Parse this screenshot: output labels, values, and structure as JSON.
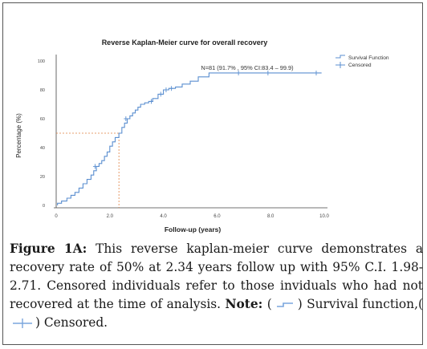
{
  "chart_data": {
    "type": "line",
    "title": "Reverse Kaplan-Meier curve for overall recovery",
    "xlabel": "Follow-up (years)",
    "ylabel": "Percentage (%)",
    "xlim": [
      0,
      10
    ],
    "ylim": [
      0,
      100
    ],
    "x_ticks": [
      "0",
      "2.0",
      "4.0",
      "6.0",
      "8.0",
      "10.0"
    ],
    "y_ticks": [
      "0",
      "20",
      "40",
      "60",
      "80",
      "100"
    ],
    "annotation": "N=81 (91.7% , 95% CI:83.4 – 99.9)",
    "grid": false,
    "legend_position": "top-right",
    "series": [
      {
        "name": "Survival Function",
        "color": "#5b8fd0",
        "step": true,
        "x": [
          0.05,
          0.2,
          0.4,
          0.55,
          0.7,
          0.85,
          1.0,
          1.15,
          1.3,
          1.4,
          1.5,
          1.6,
          1.7,
          1.8,
          1.9,
          2.0,
          2.1,
          2.2,
          2.34,
          2.45,
          2.55,
          2.65,
          2.75,
          2.85,
          2.95,
          3.05,
          3.15,
          3.3,
          3.45,
          3.6,
          3.8,
          4.0,
          4.2,
          4.45,
          4.7,
          5.0,
          5.3,
          5.7,
          6.0,
          6.5,
          7.0,
          7.5,
          8.0,
          8.3,
          8.6,
          8.9,
          9.2,
          9.6,
          9.9
        ],
        "y": [
          1.5,
          3,
          5,
          7,
          9,
          12,
          15,
          18,
          21,
          24,
          27,
          29,
          31,
          34,
          37,
          41,
          44,
          47,
          50,
          54,
          57,
          60,
          62,
          64,
          66,
          68,
          70,
          71,
          72,
          74,
          77,
          80,
          81,
          82,
          84,
          86,
          89,
          91.7,
          91.7,
          91.7,
          91.7,
          91.7,
          91.7,
          91.7,
          91.7,
          91.7,
          91.7,
          91.7,
          91.7
        ]
      },
      {
        "name": "Censored",
        "color": "#5b8fd0",
        "marker": "+",
        "x": [
          1.45,
          2.6,
          3.55,
          3.9,
          4.1,
          4.3,
          6.8,
          7.9,
          9.7
        ],
        "y": [
          27,
          60,
          72,
          77,
          80,
          81,
          91.7,
          91.7,
          91.7
        ]
      }
    ],
    "reference_lines": {
      "median_x": 2.34,
      "median_y": 50,
      "color": "#e08040"
    }
  },
  "caption": {
    "label": "Figure 1A:",
    "text": " This reverse kaplan-meier curve demonstrates a recovery rate of 50% at 2.34 years follow up with 95% C.I. 1.98-2.71. Censored individuals refer to those inviduals who had not recovered at the time of analysis. ",
    "note_label": "Note:",
    "note_open": " (",
    "note_mid": ") Survival function,(",
    "note_end": ") Censored."
  }
}
